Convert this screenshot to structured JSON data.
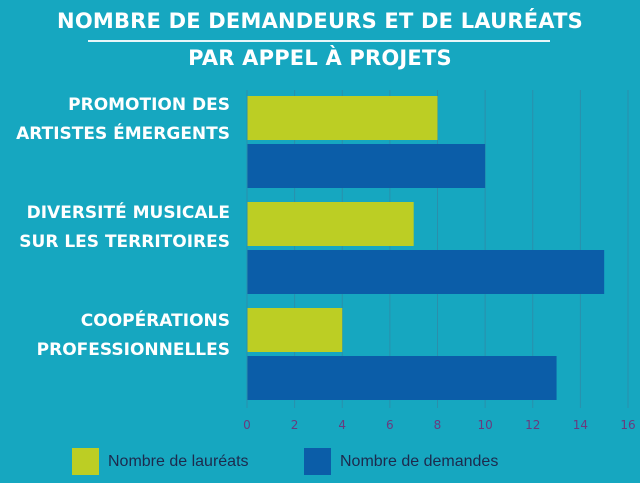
{
  "title_line1": "Nombre de demandeurs et de lauréats",
  "title_line2": "par appel à projets",
  "colors": {
    "background": "#16a7c0",
    "laureats": "#bcce24",
    "demandes": "#0b5da8",
    "grid": "#2a8fab",
    "tick": "#6a3a7e"
  },
  "chart_data": {
    "type": "bar",
    "orientation": "horizontal",
    "categories": [
      [
        "Promotion des",
        "artistes émergents"
      ],
      [
        "Diversité musicale",
        "sur les territoires"
      ],
      [
        "Coopérations",
        "professionnelles"
      ]
    ],
    "series": [
      {
        "name": "Nombre de lauréats",
        "values": [
          8,
          7,
          4
        ]
      },
      {
        "name": "Nombre de demandes",
        "values": [
          10,
          15,
          13
        ]
      }
    ],
    "xlim": [
      0,
      16
    ],
    "xticks": [
      0,
      2,
      4,
      6,
      8,
      10,
      12,
      14,
      16
    ],
    "grid": true,
    "legend": "bottom"
  },
  "legend": {
    "laureats": "Nombre de lauréats",
    "demandes": "Nombre de demandes"
  }
}
